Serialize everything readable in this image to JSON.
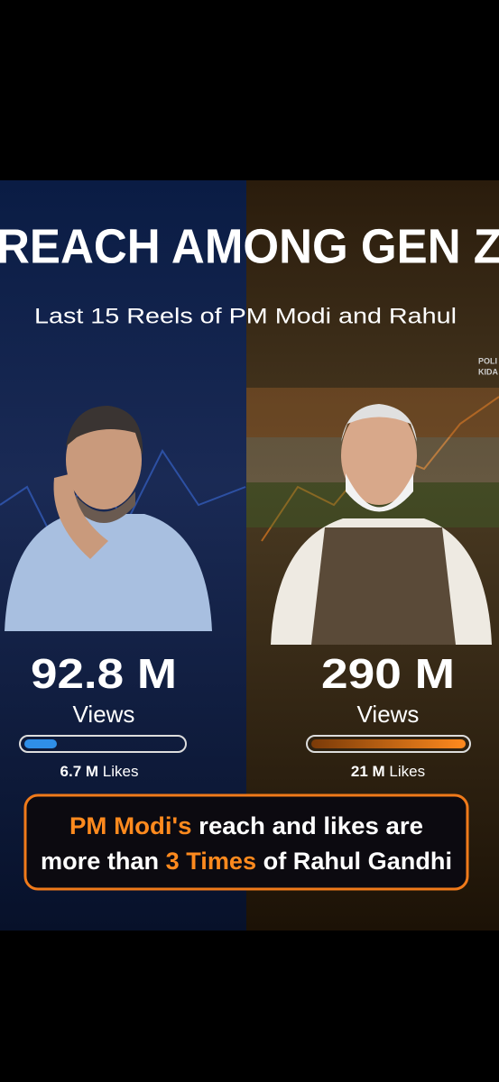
{
  "header": {
    "title": "REACH AMONG GEN Z",
    "subtitle": "Last 15 Reels of PM Modi and Rahul",
    "watermark": [
      "POLI",
      "KIDA"
    ]
  },
  "left": {
    "views": "92.8 M",
    "views_label": "Views",
    "likes": "6.7 M",
    "likes_label": "Likes"
  },
  "right": {
    "views": "290 M",
    "views_label": "Views",
    "likes": "21 M",
    "likes_label": "Likes"
  },
  "footer": {
    "line1": [
      "PM Modi's",
      "reach and likes are"
    ],
    "line2": [
      "more than",
      "3 Times",
      "of Rahul Gandhi"
    ]
  }
}
